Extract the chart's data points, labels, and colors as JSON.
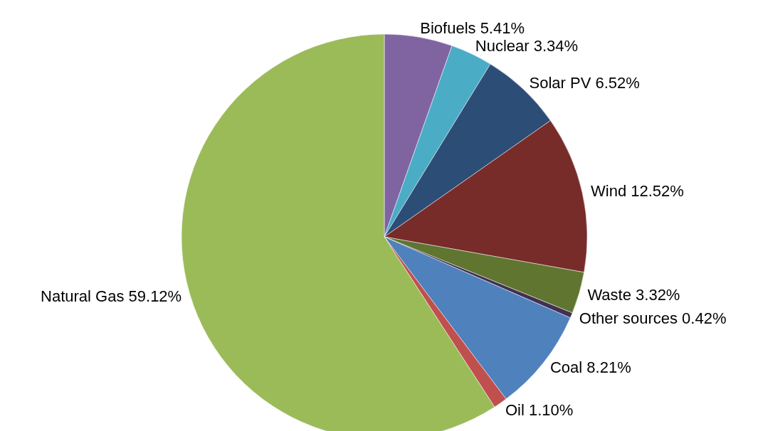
{
  "chart_data": {
    "type": "pie",
    "categories": [
      "Biofuels",
      "Nuclear",
      "Solar PV",
      "Wind",
      "Waste",
      "Other sources",
      "Coal",
      "Oil",
      "Natural Gas"
    ],
    "values": [
      5.41,
      3.34,
      6.52,
      12.52,
      3.32,
      0.42,
      8.21,
      1.1,
      59.12
    ],
    "colors": [
      "#8064a2",
      "#4bacc6",
      "#2c4d75",
      "#772c2a",
      "#5f7530",
      "#403152",
      "#4f81bd",
      "#c0504d",
      "#9bbb59"
    ],
    "value_labels": [
      "5.41%",
      "3.34%",
      "6.52%",
      "12.52%",
      "3.32%",
      "0.42%",
      "8.21%",
      "1.10%",
      "59.12%"
    ]
  }
}
